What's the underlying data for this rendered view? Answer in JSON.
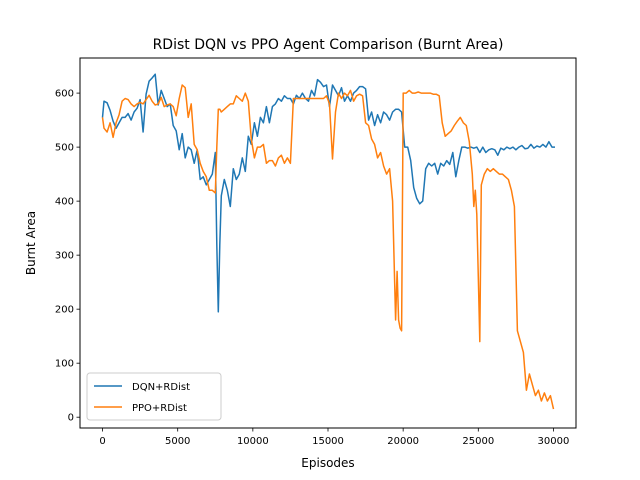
{
  "chart_data": {
    "type": "line",
    "title": "RDist DQN vs PPO Agent Comparison (Burnt Area)",
    "xlabel": "Episodes",
    "ylabel": "Burnt Area",
    "xlim": [
      -1500,
      31500
    ],
    "ylim": [
      -20,
      665
    ],
    "xticks": [
      0,
      5000,
      10000,
      15000,
      20000,
      25000,
      30000
    ],
    "yticks": [
      0,
      100,
      200,
      300,
      400,
      500,
      600
    ],
    "grid": false,
    "legend": "lower-left",
    "series": [
      {
        "name": "DQN+RDist",
        "color": "#1f77b4",
        "points": [
          [
            0,
            555
          ],
          [
            100,
            585
          ],
          [
            300,
            582
          ],
          [
            500,
            568
          ],
          [
            700,
            548
          ],
          [
            900,
            535
          ],
          [
            1100,
            545
          ],
          [
            1300,
            555
          ],
          [
            1500,
            555
          ],
          [
            1700,
            562
          ],
          [
            1900,
            550
          ],
          [
            2100,
            565
          ],
          [
            2300,
            572
          ],
          [
            2500,
            588
          ],
          [
            2700,
            528
          ],
          [
            2900,
            598
          ],
          [
            3100,
            622
          ],
          [
            3300,
            628
          ],
          [
            3500,
            635
          ],
          [
            3700,
            578
          ],
          [
            3900,
            605
          ],
          [
            4100,
            590
          ],
          [
            4300,
            575
          ],
          [
            4500,
            580
          ],
          [
            4700,
            540
          ],
          [
            4900,
            530
          ],
          [
            5100,
            495
          ],
          [
            5300,
            525
          ],
          [
            5500,
            480
          ],
          [
            5700,
            500
          ],
          [
            5900,
            495
          ],
          [
            6100,
            470
          ],
          [
            6300,
            495
          ],
          [
            6500,
            440
          ],
          [
            6700,
            445
          ],
          [
            6900,
            430
          ],
          [
            7100,
            440
          ],
          [
            7300,
            450
          ],
          [
            7500,
            490
          ],
          [
            7600,
            320
          ],
          [
            7700,
            195
          ],
          [
            7800,
            320
          ],
          [
            7900,
            410
          ],
          [
            8100,
            440
          ],
          [
            8300,
            420
          ],
          [
            8500,
            390
          ],
          [
            8700,
            460
          ],
          [
            8900,
            440
          ],
          [
            9100,
            450
          ],
          [
            9300,
            480
          ],
          [
            9500,
            455
          ],
          [
            9700,
            520
          ],
          [
            9900,
            505
          ],
          [
            10100,
            545
          ],
          [
            10300,
            520
          ],
          [
            10500,
            555
          ],
          [
            10700,
            545
          ],
          [
            10900,
            575
          ],
          [
            11100,
            545
          ],
          [
            11300,
            575
          ],
          [
            11500,
            580
          ],
          [
            11700,
            590
          ],
          [
            11900,
            585
          ],
          [
            12100,
            595
          ],
          [
            12300,
            590
          ],
          [
            12500,
            590
          ],
          [
            12700,
            580
          ],
          [
            12900,
            596
          ],
          [
            13100,
            590
          ],
          [
            13300,
            600
          ],
          [
            13500,
            590
          ],
          [
            13700,
            585
          ],
          [
            13900,
            605
          ],
          [
            14100,
            595
          ],
          [
            14300,
            625
          ],
          [
            14500,
            620
          ],
          [
            14700,
            612
          ],
          [
            14900,
            615
          ],
          [
            15100,
            575
          ],
          [
            15300,
            615
          ],
          [
            15500,
            605
          ],
          [
            15700,
            595
          ],
          [
            15900,
            610
          ],
          [
            16100,
            585
          ],
          [
            16300,
            595
          ],
          [
            16500,
            585
          ],
          [
            16700,
            600
          ],
          [
            16900,
            605
          ],
          [
            17100,
            612
          ],
          [
            17300,
            612
          ],
          [
            17500,
            608
          ],
          [
            17700,
            550
          ],
          [
            17900,
            565
          ],
          [
            18100,
            540
          ],
          [
            18300,
            560
          ],
          [
            18500,
            545
          ],
          [
            18700,
            565
          ],
          [
            18900,
            560
          ],
          [
            19100,
            550
          ],
          [
            19300,
            565
          ],
          [
            19500,
            570
          ],
          [
            19700,
            570
          ],
          [
            19900,
            565
          ],
          [
            20100,
            500
          ],
          [
            20300,
            500
          ],
          [
            20500,
            475
          ],
          [
            20700,
            425
          ],
          [
            20900,
            405
          ],
          [
            21100,
            395
          ],
          [
            21300,
            400
          ],
          [
            21500,
            460
          ],
          [
            21700,
            470
          ],
          [
            21900,
            465
          ],
          [
            22100,
            470
          ],
          [
            22300,
            450
          ],
          [
            22500,
            470
          ],
          [
            22700,
            465
          ],
          [
            22900,
            475
          ],
          [
            23100,
            468
          ],
          [
            23300,
            490
          ],
          [
            23500,
            445
          ],
          [
            23700,
            475
          ],
          [
            23900,
            500
          ],
          [
            24100,
            500
          ],
          [
            24300,
            498
          ],
          [
            24500,
            500
          ],
          [
            24700,
            498
          ],
          [
            24900,
            500
          ],
          [
            25100,
            490
          ],
          [
            25300,
            500
          ],
          [
            25500,
            490
          ],
          [
            25700,
            495
          ],
          [
            25900,
            497
          ],
          [
            26100,
            495
          ],
          [
            26300,
            485
          ],
          [
            26500,
            498
          ],
          [
            26700,
            495
          ],
          [
            26900,
            500
          ],
          [
            27100,
            497
          ],
          [
            27300,
            500
          ],
          [
            27500,
            495
          ],
          [
            27700,
            500
          ],
          [
            27900,
            503
          ],
          [
            28100,
            497
          ],
          [
            28300,
            498
          ],
          [
            28500,
            505
          ],
          [
            28700,
            498
          ],
          [
            28900,
            502
          ],
          [
            29100,
            500
          ],
          [
            29300,
            505
          ],
          [
            29500,
            500
          ],
          [
            29700,
            510
          ],
          [
            29900,
            500
          ],
          [
            30100,
            500
          ]
        ]
      },
      {
        "name": "PPO+RDist",
        "color": "#ff7f0e",
        "points": [
          [
            0,
            555
          ],
          [
            100,
            535
          ],
          [
            300,
            528
          ],
          [
            500,
            545
          ],
          [
            700,
            518
          ],
          [
            900,
            545
          ],
          [
            1100,
            560
          ],
          [
            1300,
            585
          ],
          [
            1500,
            590
          ],
          [
            1700,
            588
          ],
          [
            1900,
            580
          ],
          [
            2100,
            575
          ],
          [
            2300,
            580
          ],
          [
            2500,
            583
          ],
          [
            2700,
            580
          ],
          [
            2900,
            588
          ],
          [
            3100,
            596
          ],
          [
            3300,
            585
          ],
          [
            3500,
            578
          ],
          [
            3700,
            580
          ],
          [
            3900,
            592
          ],
          [
            4100,
            575
          ],
          [
            4300,
            578
          ],
          [
            4500,
            580
          ],
          [
            4700,
            575
          ],
          [
            4900,
            558
          ],
          [
            5100,
            590
          ],
          [
            5300,
            615
          ],
          [
            5500,
            610
          ],
          [
            5700,
            555
          ],
          [
            5900,
            580
          ],
          [
            6100,
            505
          ],
          [
            6300,
            495
          ],
          [
            6500,
            470
          ],
          [
            6700,
            455
          ],
          [
            6900,
            445
          ],
          [
            7100,
            420
          ],
          [
            7300,
            420
          ],
          [
            7500,
            415
          ],
          [
            7600,
            500
          ],
          [
            7700,
            570
          ],
          [
            7800,
            570
          ],
          [
            7900,
            565
          ],
          [
            8100,
            570
          ],
          [
            8300,
            575
          ],
          [
            8500,
            580
          ],
          [
            8700,
            580
          ],
          [
            8900,
            595
          ],
          [
            9100,
            590
          ],
          [
            9300,
            585
          ],
          [
            9500,
            600
          ],
          [
            9700,
            585
          ],
          [
            9900,
            515
          ],
          [
            10100,
            480
          ],
          [
            10300,
            500
          ],
          [
            10500,
            500
          ],
          [
            10700,
            505
          ],
          [
            10900,
            470
          ],
          [
            11100,
            475
          ],
          [
            11300,
            475
          ],
          [
            11500,
            465
          ],
          [
            11700,
            480
          ],
          [
            11900,
            485
          ],
          [
            12100,
            470
          ],
          [
            12300,
            480
          ],
          [
            12500,
            470
          ],
          [
            12700,
            590
          ],
          [
            12900,
            590
          ],
          [
            13100,
            590
          ],
          [
            13300,
            590
          ],
          [
            13500,
            590
          ],
          [
            13700,
            590
          ],
          [
            13900,
            590
          ],
          [
            14100,
            590
          ],
          [
            14300,
            590
          ],
          [
            14500,
            590
          ],
          [
            14700,
            590
          ],
          [
            14900,
            595
          ],
          [
            15100,
            580
          ],
          [
            15300,
            478
          ],
          [
            15500,
            565
          ],
          [
            15700,
            600
          ],
          [
            15900,
            590
          ],
          [
            16100,
            600
          ],
          [
            16300,
            595
          ],
          [
            16500,
            605
          ],
          [
            16700,
            585
          ],
          [
            16900,
            595
          ],
          [
            17100,
            598
          ],
          [
            17300,
            595
          ],
          [
            17500,
            545
          ],
          [
            17700,
            540
          ],
          [
            17900,
            515
          ],
          [
            18100,
            505
          ],
          [
            18300,
            480
          ],
          [
            18500,
            490
          ],
          [
            18700,
            465
          ],
          [
            18900,
            450
          ],
          [
            19100,
            460
          ],
          [
            19300,
            400
          ],
          [
            19500,
            180
          ],
          [
            19600,
            270
          ],
          [
            19700,
            180
          ],
          [
            19800,
            165
          ],
          [
            19900,
            160
          ],
          [
            20000,
            600
          ],
          [
            20200,
            600
          ],
          [
            20400,
            605
          ],
          [
            20600,
            600
          ],
          [
            20800,
            600
          ],
          [
            21000,
            602
          ],
          [
            21200,
            600
          ],
          [
            21400,
            600
          ],
          [
            21600,
            600
          ],
          [
            21800,
            600
          ],
          [
            22000,
            598
          ],
          [
            22200,
            598
          ],
          [
            22400,
            595
          ],
          [
            22600,
            545
          ],
          [
            22800,
            520
          ],
          [
            23000,
            525
          ],
          [
            23200,
            530
          ],
          [
            23400,
            540
          ],
          [
            23600,
            548
          ],
          [
            23800,
            555
          ],
          [
            24000,
            545
          ],
          [
            24200,
            540
          ],
          [
            24400,
            510
          ],
          [
            24600,
            450
          ],
          [
            24700,
            390
          ],
          [
            24800,
            420
          ],
          [
            24900,
            375
          ],
          [
            25000,
            260
          ],
          [
            25100,
            140
          ],
          [
            25200,
            430
          ],
          [
            25400,
            450
          ],
          [
            25600,
            460
          ],
          [
            25800,
            455
          ],
          [
            26000,
            460
          ],
          [
            26200,
            455
          ],
          [
            26400,
            450
          ],
          [
            26600,
            450
          ],
          [
            26800,
            445
          ],
          [
            27000,
            440
          ],
          [
            27200,
            420
          ],
          [
            27400,
            390
          ],
          [
            27600,
            160
          ],
          [
            27800,
            140
          ],
          [
            28000,
            120
          ],
          [
            28200,
            50
          ],
          [
            28400,
            80
          ],
          [
            28600,
            60
          ],
          [
            28800,
            40
          ],
          [
            29000,
            50
          ],
          [
            29200,
            30
          ],
          [
            29400,
            45
          ],
          [
            29600,
            30
          ],
          [
            29800,
            40
          ],
          [
            30000,
            15
          ]
        ]
      }
    ]
  }
}
